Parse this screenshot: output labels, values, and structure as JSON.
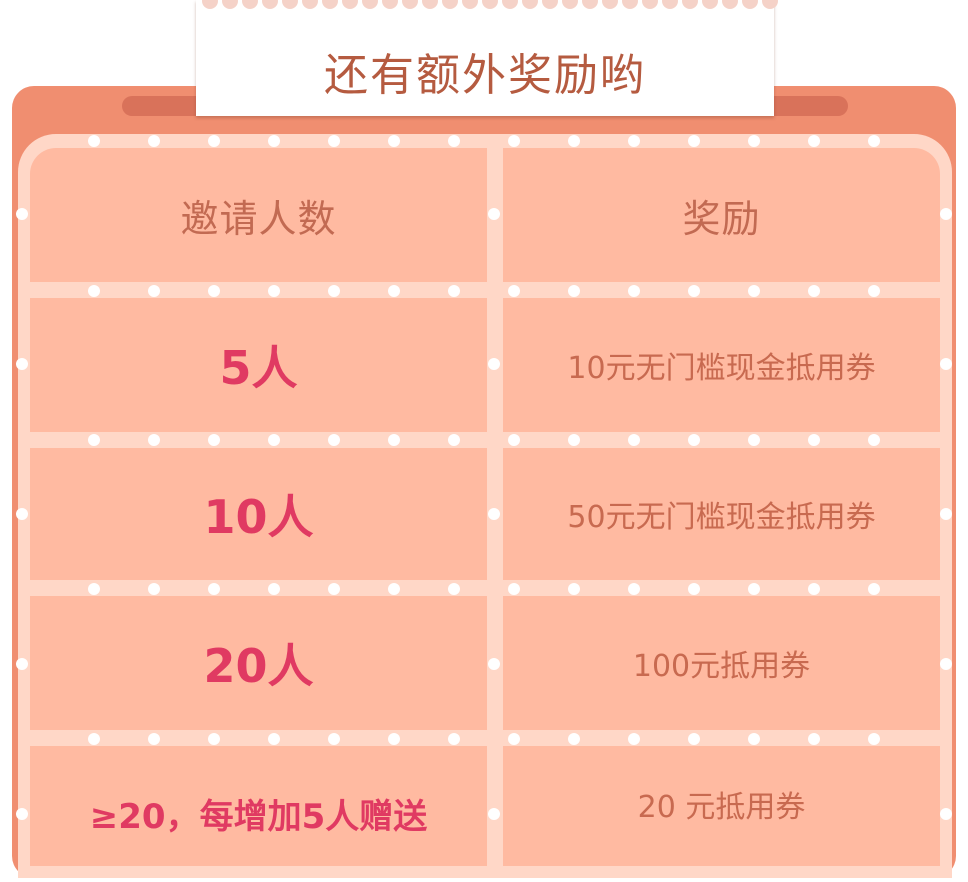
{
  "title": "还有额外奖励哟",
  "table": {
    "header": {
      "invite_count": "邀请人数",
      "reward": "奖励"
    },
    "rows": [
      {
        "count": "5人",
        "reward": "10元无门槛现金抵用券"
      },
      {
        "count": "10人",
        "reward": "50元无门槛现金抵用券"
      },
      {
        "count": "20人",
        "reward": "100元抵用券"
      },
      {
        "count": "≥20，每增加5人赠送",
        "reward": "20 元抵用券"
      }
    ]
  },
  "colors": {
    "frame": "#f08e70",
    "cell": "#ffbaa1",
    "grid": "#ffd7c7",
    "highlight_text": "#e03a62",
    "body_text": "#c86a50"
  }
}
